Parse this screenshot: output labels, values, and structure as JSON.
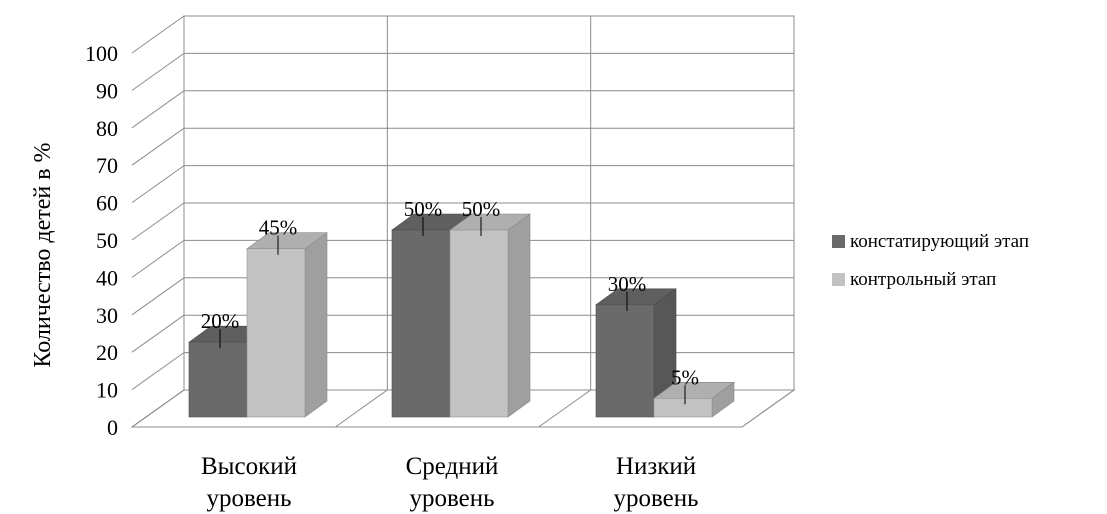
{
  "chart_data": {
    "type": "bar",
    "categories": [
      [
        "Высокий",
        "уровень"
      ],
      [
        "Средний",
        "уровень"
      ],
      [
        "Низкий",
        "уровень"
      ]
    ],
    "series": [
      {
        "name": "констатирующий этап",
        "values": [
          20,
          50,
          30
        ],
        "labels": [
          "20%",
          "50%",
          "30%"
        ],
        "color": "#6a6a6a"
      },
      {
        "name": "контрольный этап",
        "values": [
          45,
          50,
          5
        ],
        "labels": [
          "45%",
          "50%",
          "5%"
        ],
        "color": "#c2c2c2"
      }
    ],
    "ylabel": "Количество детей в %",
    "yticks": [
      "0",
      "10",
      "20",
      "30",
      "40",
      "50",
      "60",
      "70",
      "80",
      "90",
      "100"
    ],
    "ylim": [
      0,
      100
    ],
    "grid": true,
    "legend_position": "right",
    "style": "3d-clustered-column"
  }
}
